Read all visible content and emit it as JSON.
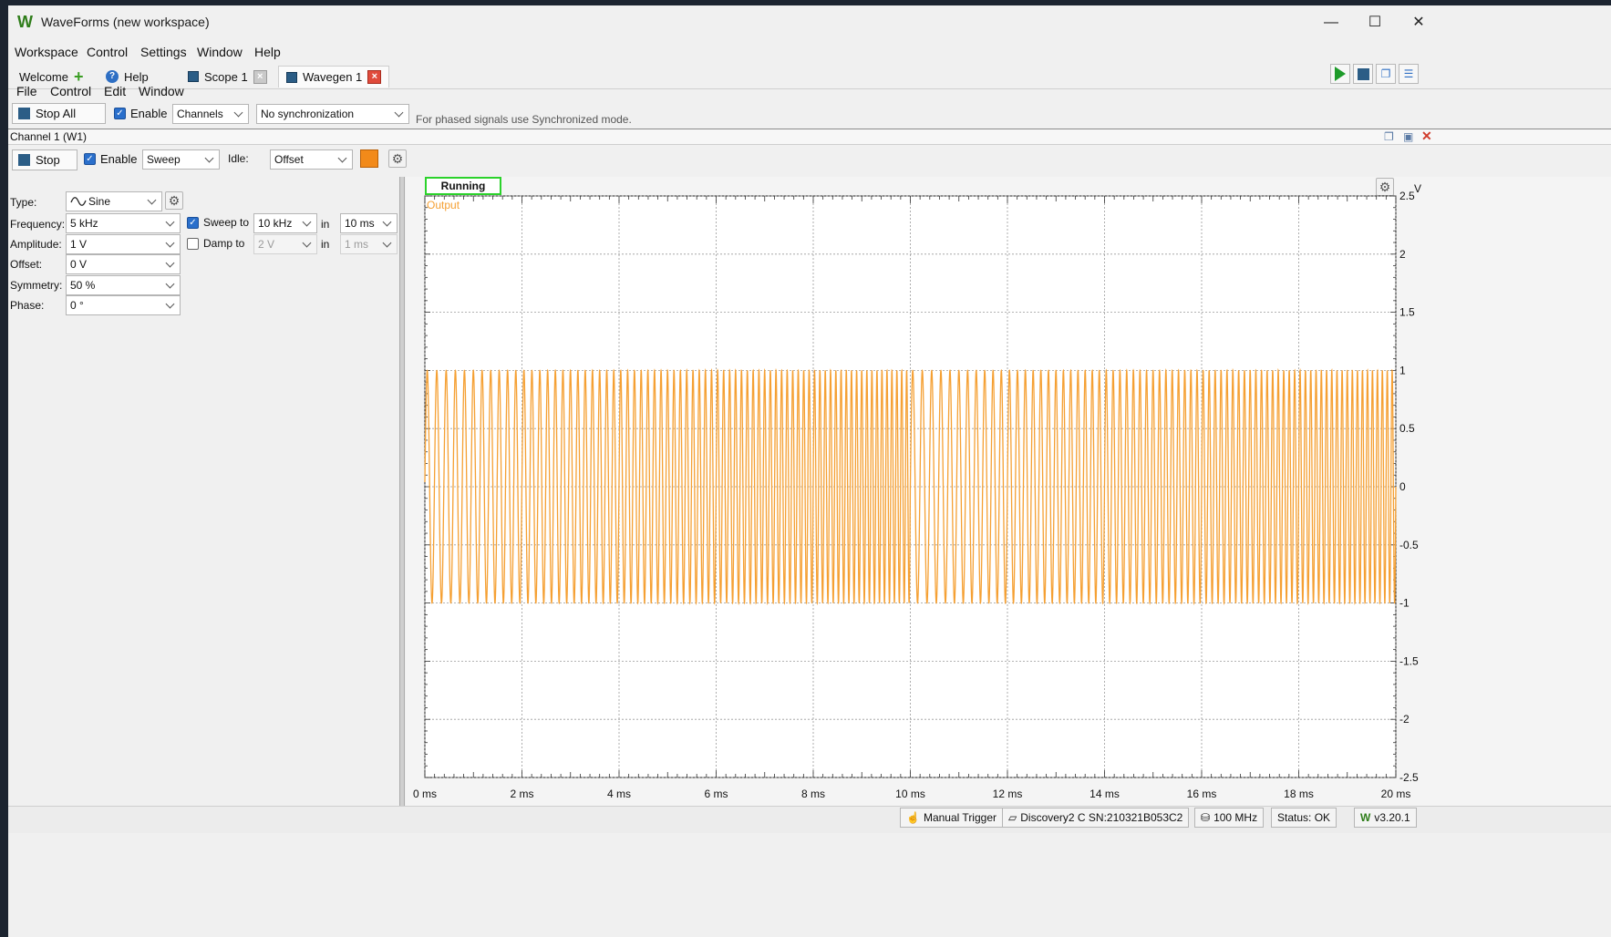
{
  "window": {
    "title": "WaveForms (new workspace)",
    "logo": "W",
    "minimize_icon": "—",
    "maximize_icon": "☐",
    "close_icon": "✕"
  },
  "main_menu": [
    "Workspace",
    "Control",
    "Settings",
    "Window",
    "Help"
  ],
  "tabs": [
    {
      "label": "Welcome"
    },
    {
      "label": "Help"
    },
    {
      "label": "Scope 1"
    },
    {
      "label": "Wavegen 1"
    }
  ],
  "wavegen_menu": [
    "File",
    "Control",
    "Edit",
    "Window"
  ],
  "toolbar": {
    "stop_all_label": "Stop All",
    "enable_label": "Enable",
    "channels_value": "Channels",
    "sync_value": "No synchronization",
    "hint": "For phased signals use Synchronized mode."
  },
  "channel": {
    "header": "Channel 1 (W1)",
    "stop_label": "Stop",
    "enable_label": "Enable",
    "mode_value": "Sweep",
    "idle_label": "Idle:",
    "idle_value": "Offset",
    "color": "#f28a1a"
  },
  "params": {
    "type_label": "Type:",
    "type_value": "Sine",
    "frequency_label": "Frequency:",
    "frequency_value": "5 kHz",
    "amplitude_label": "Amplitude:",
    "amplitude_value": "1 V",
    "offset_label": "Offset:",
    "offset_value": "0 V",
    "symmetry_label": "Symmetry:",
    "symmetry_value": "50 %",
    "phase_label": "Phase:",
    "phase_value": "0 °",
    "sweep_label": "Sweep to",
    "sweep_value": "10 kHz",
    "sweep_in_label": "in",
    "sweep_time": "10 ms",
    "damp_label": "Damp to",
    "damp_value": "2 V",
    "damp_in_label": "in",
    "damp_time": "1 ms"
  },
  "plot": {
    "status": "Running",
    "trace_label": "Output",
    "y_unit": "V",
    "y_ticks": [
      "2.5",
      "2",
      "1.5",
      "1",
      "0.5",
      "0",
      "-0.5",
      "-1",
      "-1.5",
      "-2",
      "-2.5"
    ],
    "x_ticks": [
      "0 ms",
      "2 ms",
      "4 ms",
      "6 ms",
      "8 ms",
      "10 ms",
      "12 ms",
      "14 ms",
      "16 ms",
      "18 ms",
      "20 ms"
    ],
    "trace_color": "#f5a033",
    "grid_color": "#9a9a9a"
  },
  "chart_data": {
    "type": "line",
    "xlabel": "",
    "ylabel": "V",
    "xlim": [
      0,
      20
    ],
    "ylim": [
      -2.5,
      2.5
    ],
    "series": [
      {
        "name": "Output",
        "waveform": "sine",
        "amplitude": 1,
        "offset": 0,
        "start_frequency_khz": 5,
        "end_frequency_khz": 10,
        "sweep_time_ms": 10
      }
    ]
  },
  "statusbar": {
    "manual_trigger": "Manual Trigger",
    "device": "Discovery2 C SN:210321B053C2",
    "clock": "100 MHz",
    "status": "Status: OK",
    "version": "v3.20.1"
  }
}
